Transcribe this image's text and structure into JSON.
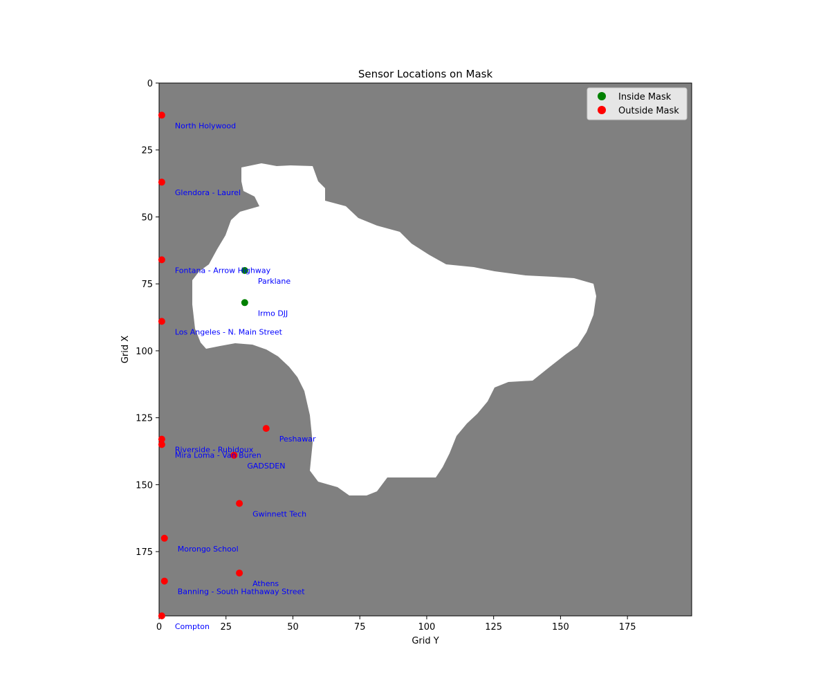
{
  "chart_data": {
    "type": "scatter",
    "title": "Sensor Locations on Mask",
    "xlabel": "Grid Y",
    "ylabel": "Grid X",
    "xlim": [
      0,
      199
    ],
    "ylim": [
      199,
      0
    ],
    "x_ticks": [
      0,
      25,
      50,
      75,
      100,
      125,
      150,
      175
    ],
    "y_ticks": [
      0,
      25,
      50,
      75,
      100,
      125,
      150,
      175
    ],
    "grid": false,
    "legend_position": "upper right",
    "background_color": "#808080",
    "mask_color": "#ffffff",
    "label_color": "#0000ff",
    "series": [
      {
        "name": "Inside Mask",
        "color": "#008000",
        "points": [
          {
            "label": "Parklane",
            "y": 32,
            "x": 70
          },
          {
            "label": "Irmo DJJ",
            "y": 32,
            "x": 82
          }
        ]
      },
      {
        "name": "Outside Mask",
        "color": "#ff0000",
        "points": [
          {
            "label": "North Holywood",
            "y": 1,
            "x": 12
          },
          {
            "label": "Glendora - Laurel",
            "y": 1,
            "x": 37
          },
          {
            "label": "Fontana - Arrow Highway",
            "y": 1,
            "x": 66
          },
          {
            "label": "Los Angeles - N. Main Street",
            "y": 1,
            "x": 89
          },
          {
            "label": "Peshawar",
            "y": 40,
            "x": 129
          },
          {
            "label": "Riverside - Rubidoux",
            "y": 1,
            "x": 133
          },
          {
            "label": "Mira Loma - Van Buren",
            "y": 1,
            "x": 135
          },
          {
            "label": "GADSDEN",
            "y": 28,
            "x": 139
          },
          {
            "label": "Gwinnett Tech",
            "y": 30,
            "x": 157
          },
          {
            "label": "Morongo School",
            "y": 2,
            "x": 170
          },
          {
            "label": "Athens",
            "y": 30,
            "x": 183
          },
          {
            "label": "Banning - South Hathaway Street",
            "y": 2,
            "x": 186
          },
          {
            "label": "Compton",
            "y": 1,
            "x": 199
          }
        ]
      }
    ]
  }
}
